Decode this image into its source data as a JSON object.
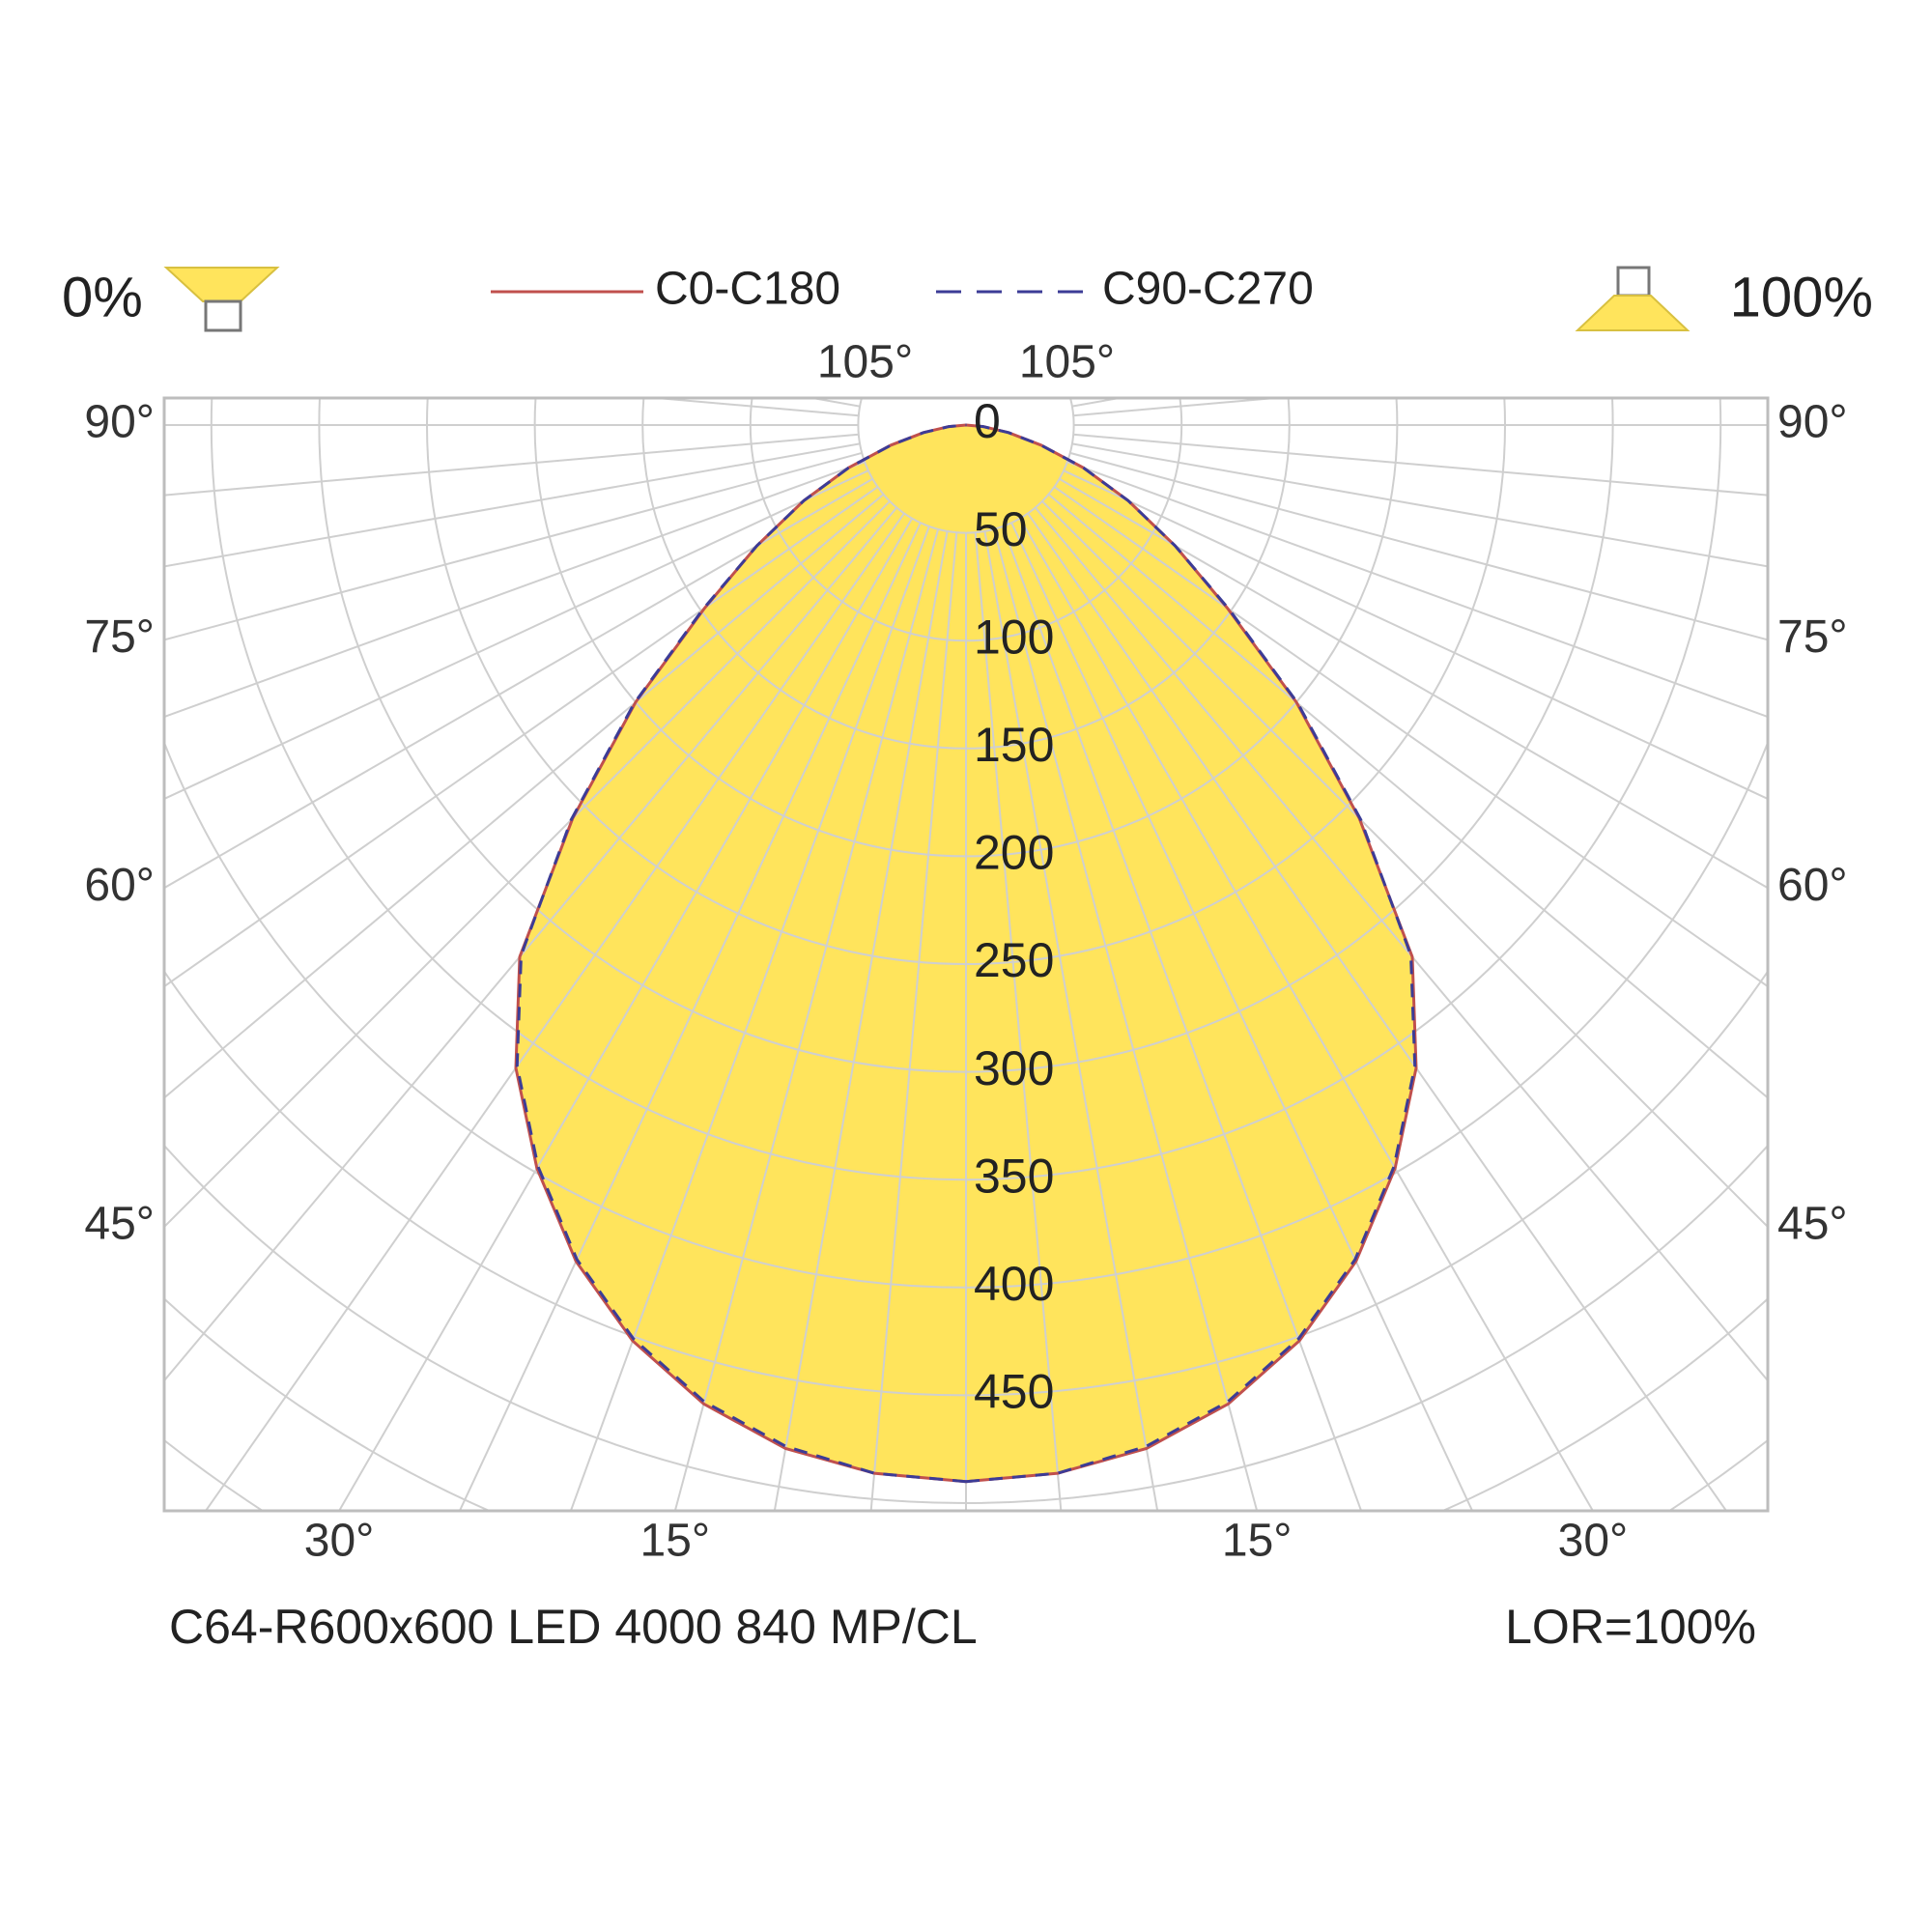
{
  "chart_data": {
    "type": "polar",
    "corner_labels": [
      "0%",
      "100%"
    ],
    "angles": [
      0,
      5,
      10,
      15,
      20,
      25,
      30,
      35,
      40,
      45,
      50,
      55,
      60,
      65,
      70,
      75,
      80,
      85,
      90
    ],
    "series": [
      {
        "name": "C0-C180",
        "color": "#c0504d",
        "dash": false,
        "values": [
          490,
          488,
          482,
          470,
          452,
          428,
          398,
          364,
          322,
          258,
          200,
          148,
          112,
          83,
          58,
          36,
          20,
          8,
          0
        ]
      },
      {
        "name": "C90-C270",
        "color": "#3c3c96",
        "dash": true,
        "values": [
          490,
          488,
          481,
          469,
          451,
          427,
          397,
          363,
          321,
          259,
          201,
          149,
          112,
          83,
          58,
          36,
          20,
          8,
          0
        ]
      }
    ],
    "fill": "#ffe45c",
    "rlim": [
      0,
      500
    ],
    "rticks": [
      0,
      50,
      100,
      150,
      200,
      250,
      300,
      350,
      400,
      450
    ],
    "angle_ticks": [
      {
        "value": 15,
        "label": "15°"
      },
      {
        "value": 30,
        "label": "30°"
      },
      {
        "value": 45,
        "label": "45°"
      },
      {
        "value": 60,
        "label": "60°"
      },
      {
        "value": 75,
        "label": "75°"
      },
      {
        "value": 90,
        "label": "90°"
      },
      {
        "value": 105,
        "label": "105°"
      }
    ],
    "grid": true,
    "footer": [
      "C64-R600x600 LED 4000 840 MP/CL",
      "LOR=100%"
    ]
  }
}
